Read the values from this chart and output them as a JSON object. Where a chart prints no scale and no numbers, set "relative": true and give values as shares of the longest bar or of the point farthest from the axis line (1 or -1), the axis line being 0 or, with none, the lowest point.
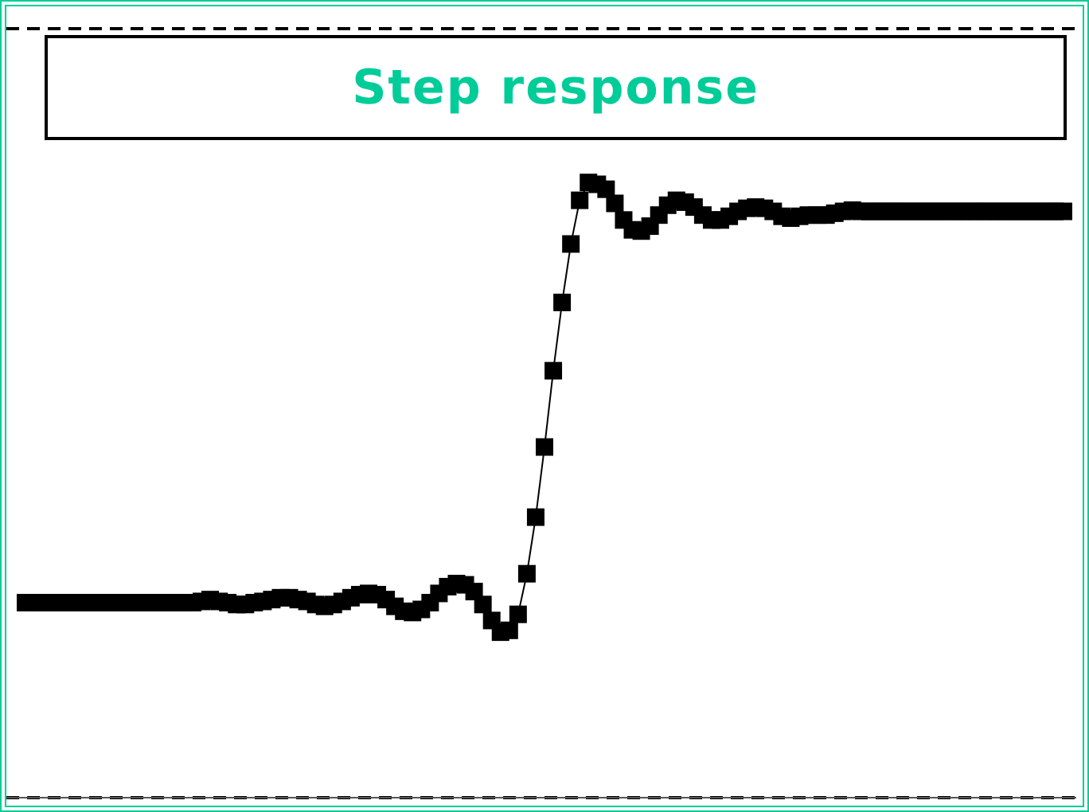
{
  "chart_data": {
    "type": "line",
    "title": "Step response",
    "relative": true,
    "grid": "y",
    "marker": "square",
    "line_style": "solid",
    "categories": [
      null,
      null,
      null,
      null,
      null,
      null,
      null,
      null,
      null,
      null,
      null,
      null,
      null,
      null,
      null,
      null,
      null,
      null,
      null,
      null,
      null,
      null,
      null,
      null,
      null,
      null,
      null,
      null,
      null,
      null,
      null,
      null,
      null,
      null,
      null,
      null,
      null,
      null,
      null,
      null,
      null,
      null,
      null,
      null,
      null,
      null,
      null,
      null,
      null,
      null,
      null,
      null,
      null,
      null,
      null,
      null,
      null,
      null,
      null,
      null,
      null,
      null,
      null,
      null,
      null,
      null,
      null,
      null,
      null,
      null,
      null,
      null,
      null,
      null,
      null,
      null,
      null,
      null,
      null,
      null,
      null,
      null,
      null,
      null,
      null,
      null,
      null,
      null,
      null,
      null,
      null,
      null,
      null,
      null,
      null,
      null,
      null,
      null,
      null,
      null,
      null,
      null,
      null,
      null,
      null,
      null,
      null,
      null,
      null,
      null,
      null,
      null,
      null,
      null,
      null,
      null,
      null,
      null,
      null
    ],
    "series": [
      {
        "color": "#000000",
        "values": [
          0.317,
          0.317,
          0.317,
          0.317,
          0.317,
          0.317,
          0.317,
          0.317,
          0.317,
          0.317,
          0.317,
          0.317,
          0.317,
          0.317,
          0.317,
          0.317,
          0.317,
          0.317,
          0.317,
          0.317,
          0.319,
          0.322,
          0.319,
          0.317,
          0.314,
          0.314,
          0.317,
          0.319,
          0.322,
          0.325,
          0.325,
          0.322,
          0.319,
          0.314,
          0.311,
          0.314,
          0.319,
          0.325,
          0.33,
          0.332,
          0.33,
          0.322,
          0.311,
          0.303,
          0.301,
          0.306,
          0.317,
          0.332,
          0.343,
          0.348,
          0.346,
          0.335,
          0.314,
          0.288,
          0.269,
          0.272,
          0.298,
          0.364,
          0.456,
          0.57,
          0.694,
          0.805,
          0.9,
          0.971,
          1,
          0.997,
          0.989,
          0.966,
          0.939,
          0.923,
          0.921,
          0.929,
          0.947,
          0.963,
          0.971,
          0.968,
          0.96,
          0.947,
          0.939,
          0.939,
          0.945,
          0.953,
          0.958,
          0.96,
          0.958,
          0.953,
          0.945,
          0.942,
          0.945,
          0.947,
          0.947,
          0.947,
          0.95,
          0.953,
          0.955,
          0.953,
          0.953,
          0.953,
          0.953,
          0.953,
          0.953,
          0.953,
          0.953,
          0.953,
          0.953,
          0.953,
          0.953,
          0.953,
          0.953,
          0.953,
          0.953,
          0.953,
          0.953,
          0.953,
          0.953,
          0.953,
          0.953,
          0.953,
          0.953
        ]
      }
    ]
  }
}
